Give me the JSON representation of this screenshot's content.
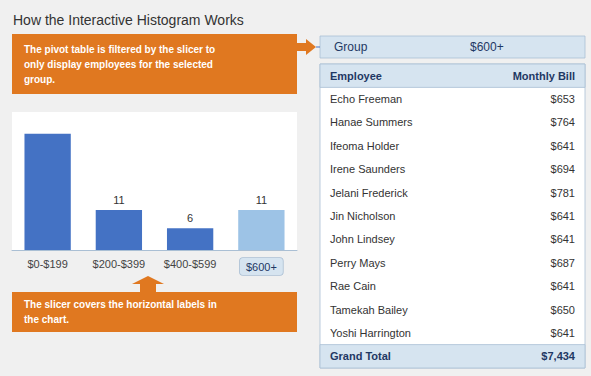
{
  "chart_data": {
    "type": "bar",
    "title": "How the Interactive Histogram Works",
    "categories": [
      "$0-$199",
      "$200-$399",
      "$400-$599",
      "$600+"
    ],
    "values": [
      32,
      11,
      6,
      11
    ],
    "colors": [
      "#4472C4",
      "#4472C4",
      "#4472C4",
      "#9DC3E6"
    ],
    "data_labels": true,
    "value_labels": [
      null,
      "11",
      "6",
      "11"
    ],
    "ylim": [
      0,
      38
    ],
    "tick_labels": "x",
    "grid": false,
    "annotations": [
      "The pivot table is filtered by the slicer to\nonly display employees for the selected\ngroup.",
      "The slicer covers the horizontal labels in\nthe chart."
    ],
    "slicer": {
      "header": "Group",
      "value": "$600+"
    },
    "table": {
      "columns": [
        "Employee",
        "Monthly Bill"
      ],
      "rows": [
        [
          "Echo Freeman",
          "$653"
        ],
        [
          "Hanae Summers",
          "$764"
        ],
        [
          "Ifeoma Holder",
          "$641"
        ],
        [
          "Irene Saunders",
          "$694"
        ],
        [
          "Jelani Frederick",
          "$781"
        ],
        [
          "Jin Nicholson",
          "$641"
        ],
        [
          "John Lindsey",
          "$641"
        ],
        [
          "Perry Mays",
          "$687"
        ],
        [
          "Rae Cain",
          "$641"
        ],
        [
          "Tamekah Bailey",
          "$650"
        ],
        [
          "Yoshi Harrington",
          "$641"
        ]
      ],
      "total": [
        "Grand Total",
        "$7,434"
      ]
    }
  }
}
